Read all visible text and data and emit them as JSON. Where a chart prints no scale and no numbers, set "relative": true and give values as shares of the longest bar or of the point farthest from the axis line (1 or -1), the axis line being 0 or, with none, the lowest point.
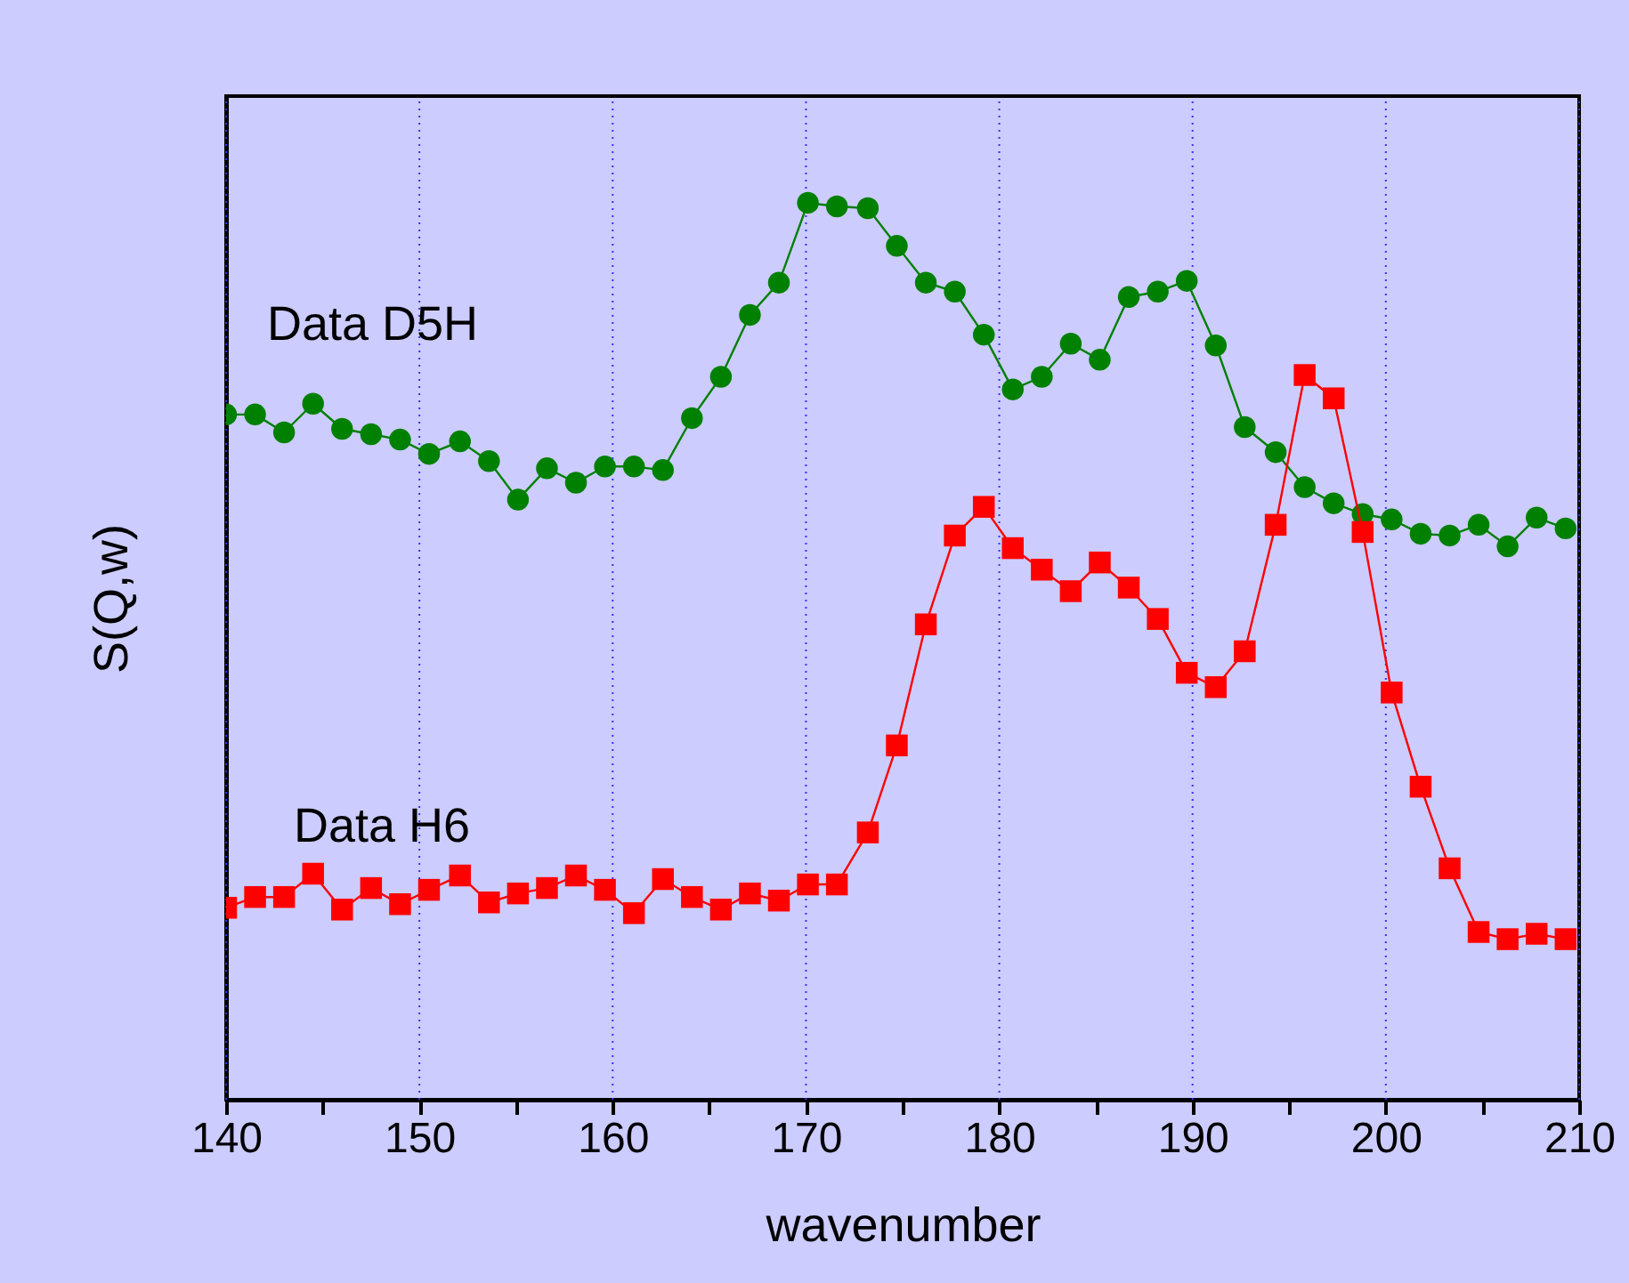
{
  "chart_data": {
    "type": "line",
    "xlabel": "wavenumber",
    "ylabel": "S(Q,w)",
    "relative": true,
    "grid": "x",
    "tick_labels": "x",
    "xlim": [
      140,
      210
    ],
    "xticks": [
      140,
      {
        "value": 145,
        "label": null
      },
      150,
      {
        "value": 155,
        "label": null
      },
      160,
      {
        "value": 165,
        "label": null
      },
      170,
      {
        "value": 175,
        "label": null
      },
      180,
      {
        "value": 185,
        "label": null
      },
      190,
      {
        "value": 195,
        "label": null
      },
      200,
      {
        "value": 205,
        "label": null
      },
      210
    ],
    "x": [
      140.0,
      141.5,
      143.0,
      144.5,
      146.0,
      147.5,
      149.0,
      150.5,
      152.1,
      153.6,
      155.1,
      156.6,
      158.1,
      159.6,
      161.1,
      162.6,
      164.1,
      165.6,
      167.1,
      168.6,
      170.1,
      171.6,
      173.2,
      174.7,
      176.2,
      177.7,
      179.2,
      180.7,
      182.2,
      183.7,
      185.2,
      186.7,
      188.2,
      189.7,
      191.2,
      192.7,
      194.3,
      195.8,
      197.3,
      198.8,
      200.3,
      201.8,
      203.3,
      204.8,
      206.3,
      207.8,
      209.3
    ],
    "series": [
      {
        "name": "Data D5H",
        "color": "#008000",
        "marker": "circle",
        "values": [
          0.764,
          0.764,
          0.744,
          0.776,
          0.748,
          0.742,
          0.736,
          0.72,
          0.734,
          0.712,
          0.669,
          0.704,
          0.688,
          0.706,
          0.706,
          0.702,
          0.76,
          0.806,
          0.875,
          0.911,
          1.0,
          0.996,
          0.994,
          0.952,
          0.911,
          0.901,
          0.853,
          0.792,
          0.806,
          0.843,
          0.825,
          0.895,
          0.901,
          0.913,
          0.841,
          0.75,
          0.722,
          0.683,
          0.665,
          0.653,
          0.647,
          0.631,
          0.629,
          0.641,
          0.617,
          0.649,
          0.637
        ]
      },
      {
        "name": "Data H6",
        "color": "#ff0000",
        "marker": "square",
        "values": [
          0.214,
          0.226,
          0.226,
          0.252,
          0.212,
          0.236,
          0.218,
          0.234,
          0.25,
          0.22,
          0.23,
          0.236,
          0.25,
          0.234,
          0.208,
          0.246,
          0.226,
          0.212,
          0.23,
          0.222,
          0.24,
          0.24,
          0.298,
          0.395,
          0.53,
          0.629,
          0.661,
          0.615,
          0.591,
          0.567,
          0.599,
          0.571,
          0.536,
          0.476,
          0.46,
          0.5,
          0.641,
          0.808,
          0.782,
          0.633,
          0.454,
          0.349,
          0.258,
          0.187,
          0.179,
          0.185,
          0.179
        ]
      }
    ]
  }
}
